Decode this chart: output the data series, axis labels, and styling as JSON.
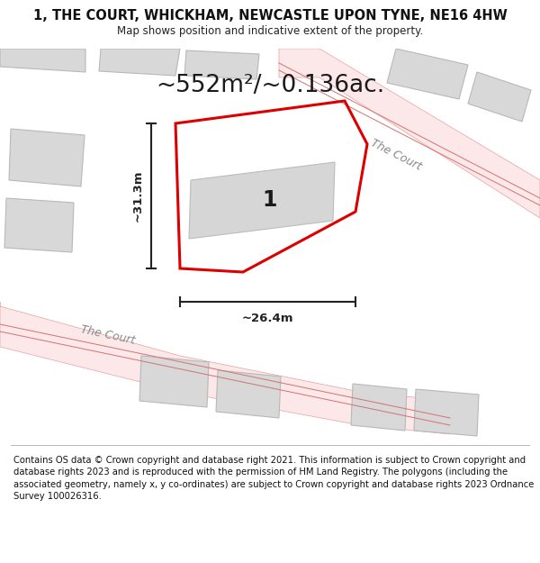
{
  "title": "1, THE COURT, WHICKHAM, NEWCASTLE UPON TYNE, NE16 4HW",
  "subtitle": "Map shows position and indicative extent of the property.",
  "area_text": "~552m²/~0.136ac.",
  "label_number": "1",
  "dim_width": "~26.4m",
  "dim_height": "~31.3m",
  "road_label_1": "The Court",
  "road_label_2": "The Court",
  "footer": "Contains OS data © Crown copyright and database right 2021. This information is subject to Crown copyright and database rights 2023 and is reproduced with the permission of HM Land Registry. The polygons (including the associated geometry, namely x, y co-ordinates) are subject to Crown copyright and database rights 2023 Ordnance Survey 100026316.",
  "bg_color": "#ffffff",
  "road_fill": "#fce8e8",
  "road_stroke": "#e8a0a0",
  "road_line": "#d47070",
  "block_fill": "#d8d8d8",
  "block_stroke": "#b8b8b8",
  "plot_stroke": "#dd0000",
  "dim_color": "#222222",
  "text_color": "#333333",
  "title_fontsize": 10.5,
  "subtitle_fontsize": 8.5,
  "area_fontsize": 19,
  "label_fontsize": 17,
  "road_fontsize": 9,
  "footer_fontsize": 7.2,
  "dim_fontsize": 9.5
}
